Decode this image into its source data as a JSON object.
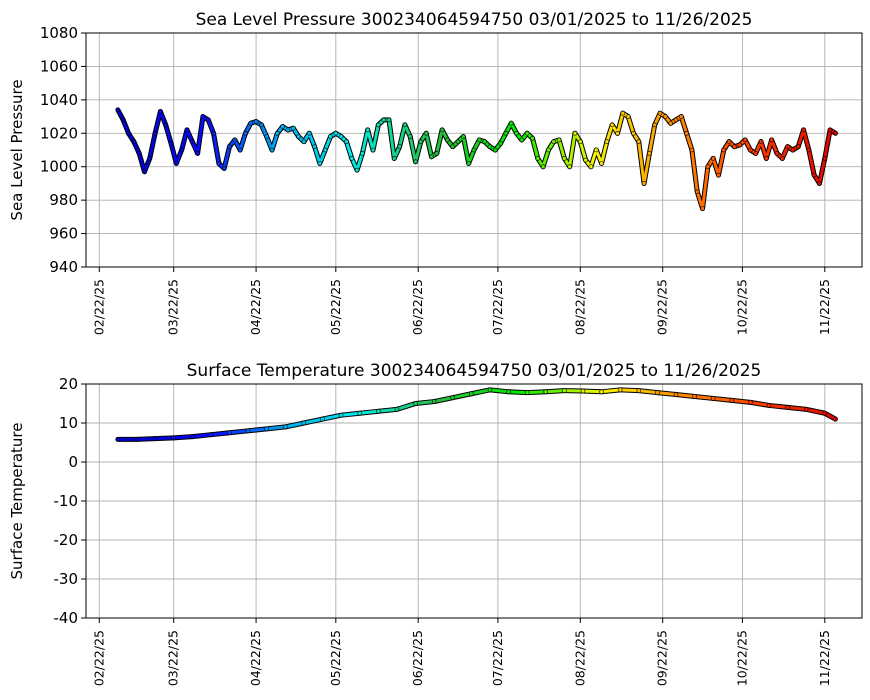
{
  "chart_data": [
    {
      "type": "scatter",
      "title": "Sea Level Pressure 300234064594750  03/01/2025 to 11/26/2025",
      "xlabel": "",
      "ylabel": "Sea Level Pressure",
      "ylim": [
        940,
        1080
      ],
      "yticks": [
        940,
        960,
        980,
        1000,
        1020,
        1040,
        1060,
        1080
      ],
      "xlim": [
        "2025-02-17",
        "2025-12-06"
      ],
      "xticks": [
        "02/22/25",
        "03/22/25",
        "04/22/25",
        "05/22/25",
        "06/22/25",
        "07/22/25",
        "08/22/25",
        "09/22/25",
        "10/22/25",
        "11/22/25"
      ],
      "grid": true,
      "color_encoding": "time (jet colormap: blue to red)",
      "series": [
        {
          "x": [
            "2025-03-01",
            "2025-03-03",
            "2025-03-05",
            "2025-03-07",
            "2025-03-09",
            "2025-03-11",
            "2025-03-13",
            "2025-03-15",
            "2025-03-17",
            "2025-03-19",
            "2025-03-21",
            "2025-03-23",
            "2025-03-25",
            "2025-03-27",
            "2025-03-29",
            "2025-03-31",
            "2025-04-02",
            "2025-04-04",
            "2025-04-06",
            "2025-04-08",
            "2025-04-10",
            "2025-04-12",
            "2025-04-14",
            "2025-04-16",
            "2025-04-18",
            "2025-04-20",
            "2025-04-22",
            "2025-04-24",
            "2025-04-26",
            "2025-04-28",
            "2025-04-30",
            "2025-05-02",
            "2025-05-04",
            "2025-05-06",
            "2025-05-08",
            "2025-05-10",
            "2025-05-12",
            "2025-05-14",
            "2025-05-16",
            "2025-05-18",
            "2025-05-20",
            "2025-05-22",
            "2025-05-24",
            "2025-05-26",
            "2025-05-28",
            "2025-05-30",
            "2025-06-01",
            "2025-06-03",
            "2025-06-05",
            "2025-06-07",
            "2025-06-09",
            "2025-06-11",
            "2025-06-13",
            "2025-06-15",
            "2025-06-17",
            "2025-06-19",
            "2025-06-21",
            "2025-06-23",
            "2025-06-25",
            "2025-06-27",
            "2025-06-29",
            "2025-07-01",
            "2025-07-03",
            "2025-07-05",
            "2025-07-07",
            "2025-07-09",
            "2025-07-11",
            "2025-07-13",
            "2025-07-15",
            "2025-07-17",
            "2025-07-19",
            "2025-07-21",
            "2025-07-23",
            "2025-07-25",
            "2025-07-27",
            "2025-07-29",
            "2025-07-31",
            "2025-08-02",
            "2025-08-04",
            "2025-08-06",
            "2025-08-08",
            "2025-08-10",
            "2025-08-12",
            "2025-08-14",
            "2025-08-16",
            "2025-08-18",
            "2025-08-20",
            "2025-08-22",
            "2025-08-24",
            "2025-08-26",
            "2025-08-28",
            "2025-08-30",
            "2025-09-01",
            "2025-09-03",
            "2025-09-05",
            "2025-09-07",
            "2025-09-09",
            "2025-09-11",
            "2025-09-13",
            "2025-09-15",
            "2025-09-17",
            "2025-09-19",
            "2025-09-21",
            "2025-09-23",
            "2025-09-25",
            "2025-09-27",
            "2025-09-29",
            "2025-10-01",
            "2025-10-03",
            "2025-10-05",
            "2025-10-07",
            "2025-10-09",
            "2025-10-11",
            "2025-10-13",
            "2025-10-15",
            "2025-10-17",
            "2025-10-19",
            "2025-10-21",
            "2025-10-23",
            "2025-10-25",
            "2025-10-27",
            "2025-10-29",
            "2025-10-31",
            "2025-11-02",
            "2025-11-04",
            "2025-11-06",
            "2025-11-08",
            "2025-11-10",
            "2025-11-12",
            "2025-11-14",
            "2025-11-16",
            "2025-11-18",
            "2025-11-20",
            "2025-11-22",
            "2025-11-24",
            "2025-11-26"
          ],
          "y": [
            1034,
            1028,
            1020,
            1015,
            1008,
            997,
            1005,
            1020,
            1033,
            1025,
            1014,
            1002,
            1010,
            1022,
            1015,
            1008,
            1030,
            1028,
            1020,
            1002,
            999,
            1012,
            1016,
            1010,
            1020,
            1026,
            1027,
            1025,
            1018,
            1010,
            1020,
            1024,
            1022,
            1023,
            1018,
            1015,
            1020,
            1012,
            1002,
            1010,
            1018,
            1020,
            1018,
            1015,
            1005,
            998,
            1008,
            1022,
            1010,
            1025,
            1028,
            1028,
            1005,
            1012,
            1025,
            1018,
            1003,
            1015,
            1020,
            1006,
            1008,
            1022,
            1016,
            1012,
            1015,
            1018,
            1002,
            1010,
            1016,
            1015,
            1012,
            1010,
            1014,
            1020,
            1026,
            1020,
            1016,
            1020,
            1017,
            1005,
            1000,
            1010,
            1015,
            1016,
            1005,
            1000,
            1020,
            1015,
            1004,
            1000,
            1010,
            1002,
            1015,
            1025,
            1020,
            1032,
            1030,
            1020,
            1015,
            990,
            1008,
            1025,
            1032,
            1030,
            1026,
            1028,
            1030,
            1020,
            1010,
            985,
            975,
            1000,
            1005,
            995,
            1010,
            1015,
            1012,
            1013,
            1016,
            1010,
            1008,
            1015,
            1005,
            1016,
            1008,
            1005,
            1012,
            1010,
            1012,
            1022,
            1010,
            995,
            990,
            1005,
            1022,
            1020
          ]
        }
      ]
    },
    {
      "type": "scatter",
      "title": "Surface Temperature 300234064594750  03/01/2025 to 11/26/2025",
      "xlabel": "",
      "ylabel": "Surface Temperature",
      "ylim": [
        -40,
        20
      ],
      "yticks": [
        -40,
        -30,
        -20,
        -10,
        0,
        10,
        20
      ],
      "xlim": [
        "2025-02-17",
        "2025-12-06"
      ],
      "xticks": [
        "02/22/25",
        "03/22/25",
        "04/22/25",
        "05/22/25",
        "06/22/25",
        "07/22/25",
        "08/22/25",
        "09/22/25",
        "10/22/25",
        "11/22/25"
      ],
      "grid": true,
      "color_encoding": "time (jet colormap: blue to red)",
      "series": [
        {
          "x": [
            "2025-03-01",
            "2025-03-08",
            "2025-03-15",
            "2025-03-22",
            "2025-03-29",
            "2025-04-05",
            "2025-04-12",
            "2025-04-19",
            "2025-04-26",
            "2025-05-03",
            "2025-05-10",
            "2025-05-17",
            "2025-05-24",
            "2025-05-31",
            "2025-06-07",
            "2025-06-14",
            "2025-06-21",
            "2025-06-28",
            "2025-07-05",
            "2025-07-12",
            "2025-07-19",
            "2025-07-26",
            "2025-08-02",
            "2025-08-09",
            "2025-08-16",
            "2025-08-23",
            "2025-08-30",
            "2025-09-06",
            "2025-09-13",
            "2025-09-20",
            "2025-09-27",
            "2025-10-04",
            "2025-10-11",
            "2025-10-18",
            "2025-10-25",
            "2025-11-01",
            "2025-11-08",
            "2025-11-15",
            "2025-11-22",
            "2025-11-26"
          ],
          "y": [
            5.8,
            5.8,
            6.0,
            6.2,
            6.5,
            7.0,
            7.5,
            8.0,
            8.5,
            9.0,
            10.0,
            11.0,
            12.0,
            12.5,
            13.0,
            13.5,
            15.0,
            15.5,
            16.5,
            17.5,
            18.5,
            18.0,
            17.8,
            18.0,
            18.3,
            18.2,
            18.0,
            18.5,
            18.3,
            17.8,
            17.3,
            16.8,
            16.3,
            15.8,
            15.3,
            14.5,
            14.0,
            13.5,
            12.5,
            11.0
          ]
        }
      ]
    }
  ]
}
